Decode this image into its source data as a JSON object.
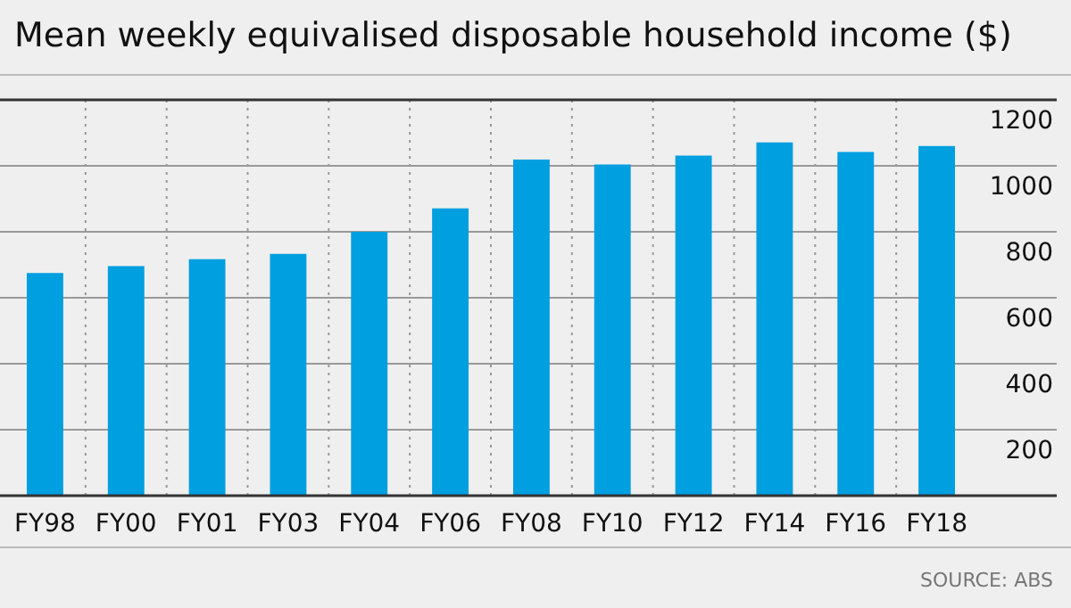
{
  "chart_data": {
    "type": "bar",
    "title": "Mean weekly equivalised disposable household income ($)",
    "categories": [
      "FY98",
      "FY00",
      "FY01",
      "FY03",
      "FY04",
      "FY06",
      "FY08",
      "FY10",
      "FY12",
      "FY14",
      "FY16",
      "FY18"
    ],
    "values": [
      675,
      696,
      717,
      733,
      800,
      871,
      1019,
      1004,
      1031,
      1071,
      1042,
      1060
    ],
    "color": "#009fe0",
    "ylim": [
      0,
      1200
    ],
    "yticks": [
      200,
      400,
      600,
      800,
      1000,
      1200
    ],
    "grid": true,
    "annotations": [
      "SOURCE: ABS"
    ]
  }
}
